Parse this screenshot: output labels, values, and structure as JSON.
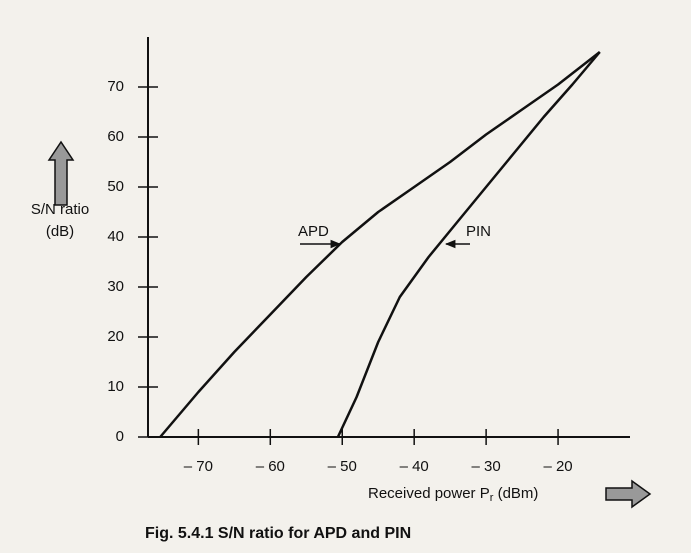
{
  "chart_data": {
    "type": "line",
    "caption": "Fig. 5.4.1 S/N ratio for APD and PIN",
    "y_label": [
      "S/N ratio",
      "(dB)"
    ],
    "x_label": [
      "Received power P",
      "r",
      " (dBm)"
    ],
    "xlim": [
      -77,
      -10
    ],
    "ylim": [
      0,
      80
    ],
    "xticks": [
      {
        "value": -70,
        "label": "– 70"
      },
      {
        "value": -60,
        "label": "– 60"
      },
      {
        "value": -50,
        "label": "– 50"
      },
      {
        "value": -40,
        "label": "– 40"
      },
      {
        "value": -30,
        "label": "– 30"
      },
      {
        "value": -20,
        "label": "– 20"
      }
    ],
    "yticks": [
      0,
      10,
      20,
      30,
      40,
      50,
      60,
      70
    ],
    "series": [
      {
        "name": "APD",
        "color": "#111111",
        "x": [
          -75.3,
          -70,
          -65,
          -60,
          -55,
          -50,
          -45,
          -40,
          -35,
          -30,
          -25,
          -20,
          -14.2
        ],
        "values": [
          0,
          9,
          17,
          24.5,
          32,
          39,
          45,
          50,
          55,
          60.5,
          65.5,
          70.5,
          77
        ]
      },
      {
        "name": "PIN",
        "color": "#111111",
        "x": [
          -50.6,
          -48,
          -45,
          -42,
          -38,
          -34,
          -30,
          -26,
          -22,
          -18,
          -14.2
        ],
        "values": [
          0,
          8,
          19,
          28,
          36,
          43,
          50,
          57,
          64,
          70.5,
          77
        ]
      }
    ]
  }
}
